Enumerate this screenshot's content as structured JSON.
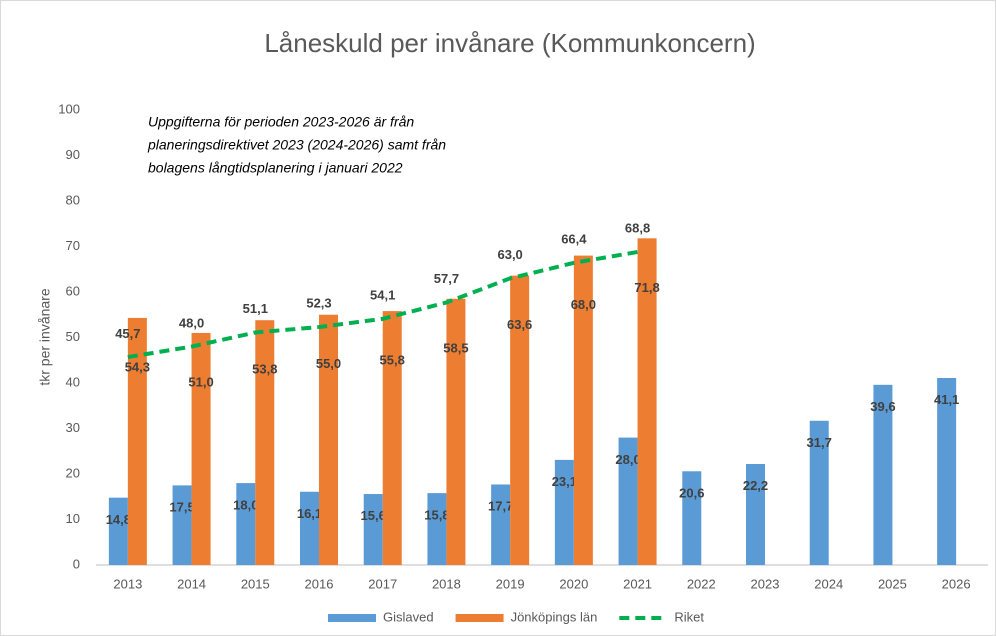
{
  "chart_data": {
    "type": "bar",
    "title": "Låneskuld per invånare (Kommunkoncern)",
    "annotation": [
      "Uppgifterna för perioden 2023-2026 är från",
      "planeringsdirektivet 2023 (2024-2026) samt från",
      "bolagens långtidsplanering i januari 2022"
    ],
    "y_label": "tkr per invånare",
    "categories": [
      "2013",
      "2014",
      "2015",
      "2016",
      "2017",
      "2018",
      "2019",
      "2020",
      "2021",
      "2022",
      "2023",
      "2024",
      "2025",
      "2026"
    ],
    "ylim": [
      0,
      100
    ],
    "yticks": [
      0,
      10,
      20,
      30,
      40,
      50,
      60,
      70,
      80,
      90,
      100
    ],
    "legend": "bottom",
    "series": [
      {
        "name": "Gislaved",
        "type": "bar",
        "color": "#5b9bd5",
        "values": [
          14.8,
          17.5,
          18.0,
          16.1,
          15.6,
          15.8,
          17.7,
          23.1,
          28.0,
          20.6,
          22.2,
          31.7,
          39.6,
          41.1
        ],
        "value_labels": [
          "14,8",
          "17,5",
          "18,0",
          "16,1",
          "15,6",
          "15,8",
          "17,7",
          "23,1",
          "28,0",
          "20,6",
          "22,2",
          "31,7",
          "39,6",
          "41,1"
        ]
      },
      {
        "name": "Jönköpings län",
        "type": "bar",
        "color": "#ed7d31",
        "values": [
          54.3,
          51.0,
          53.8,
          55.0,
          55.8,
          58.5,
          63.6,
          68.0,
          71.8,
          null,
          null,
          null,
          null,
          null
        ],
        "value_labels": [
          "54,3",
          "51,0",
          "53,8",
          "55,0",
          "55,8",
          "58,5",
          "63,6",
          "68,0",
          "71,8",
          null,
          null,
          null,
          null,
          null
        ]
      },
      {
        "name": "Riket",
        "type": "line",
        "color": "#00b050",
        "values": [
          45.7,
          48.0,
          51.1,
          52.3,
          54.1,
          57.7,
          63.0,
          66.4,
          68.8,
          null,
          null,
          null,
          null,
          null
        ],
        "value_labels": [
          "45,7",
          "48,0",
          "51,1",
          "52,3",
          "54,1",
          "57,7",
          "63,0",
          "66,4",
          "68,8",
          null,
          null,
          null,
          null,
          null
        ]
      }
    ]
  }
}
